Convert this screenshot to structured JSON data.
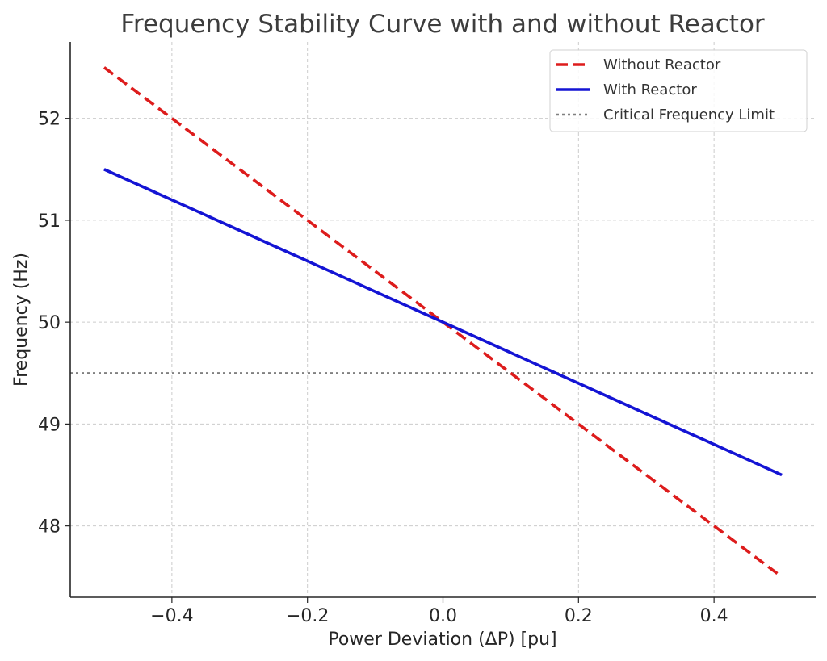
{
  "chart_data": {
    "type": "line",
    "title": "Frequency Stability Curve with and without Reactor",
    "xlabel": "Power Deviation (ΔP) [pu]",
    "ylabel": "Frequency (Hz)",
    "xlim": [
      -0.55,
      0.55
    ],
    "ylim": [
      47.3,
      52.75
    ],
    "xticks": [
      -0.4,
      -0.2,
      0.0,
      0.2,
      0.4
    ],
    "xtick_labels": [
      "−0.4",
      "−0.2",
      "0.0",
      "0.2",
      "0.4"
    ],
    "yticks": [
      48,
      49,
      50,
      51,
      52
    ],
    "ytick_labels": [
      "48",
      "49",
      "50",
      "51",
      "52"
    ],
    "grid": true,
    "legend_position": "top-right",
    "series": [
      {
        "name": "Without Reactor",
        "x": [
          -0.5,
          0.5
        ],
        "y": [
          52.5,
          47.5
        ],
        "color": "#dd1c1c",
        "style": "dashed"
      },
      {
        "name": "With Reactor",
        "x": [
          -0.5,
          0.5
        ],
        "y": [
          51.5,
          48.5
        ],
        "color": "#1414d4",
        "style": "solid"
      }
    ],
    "reference_lines": [
      {
        "name": "Critical Frequency Limit",
        "y": 49.5,
        "color": "#808080",
        "style": "dotted"
      }
    ]
  }
}
